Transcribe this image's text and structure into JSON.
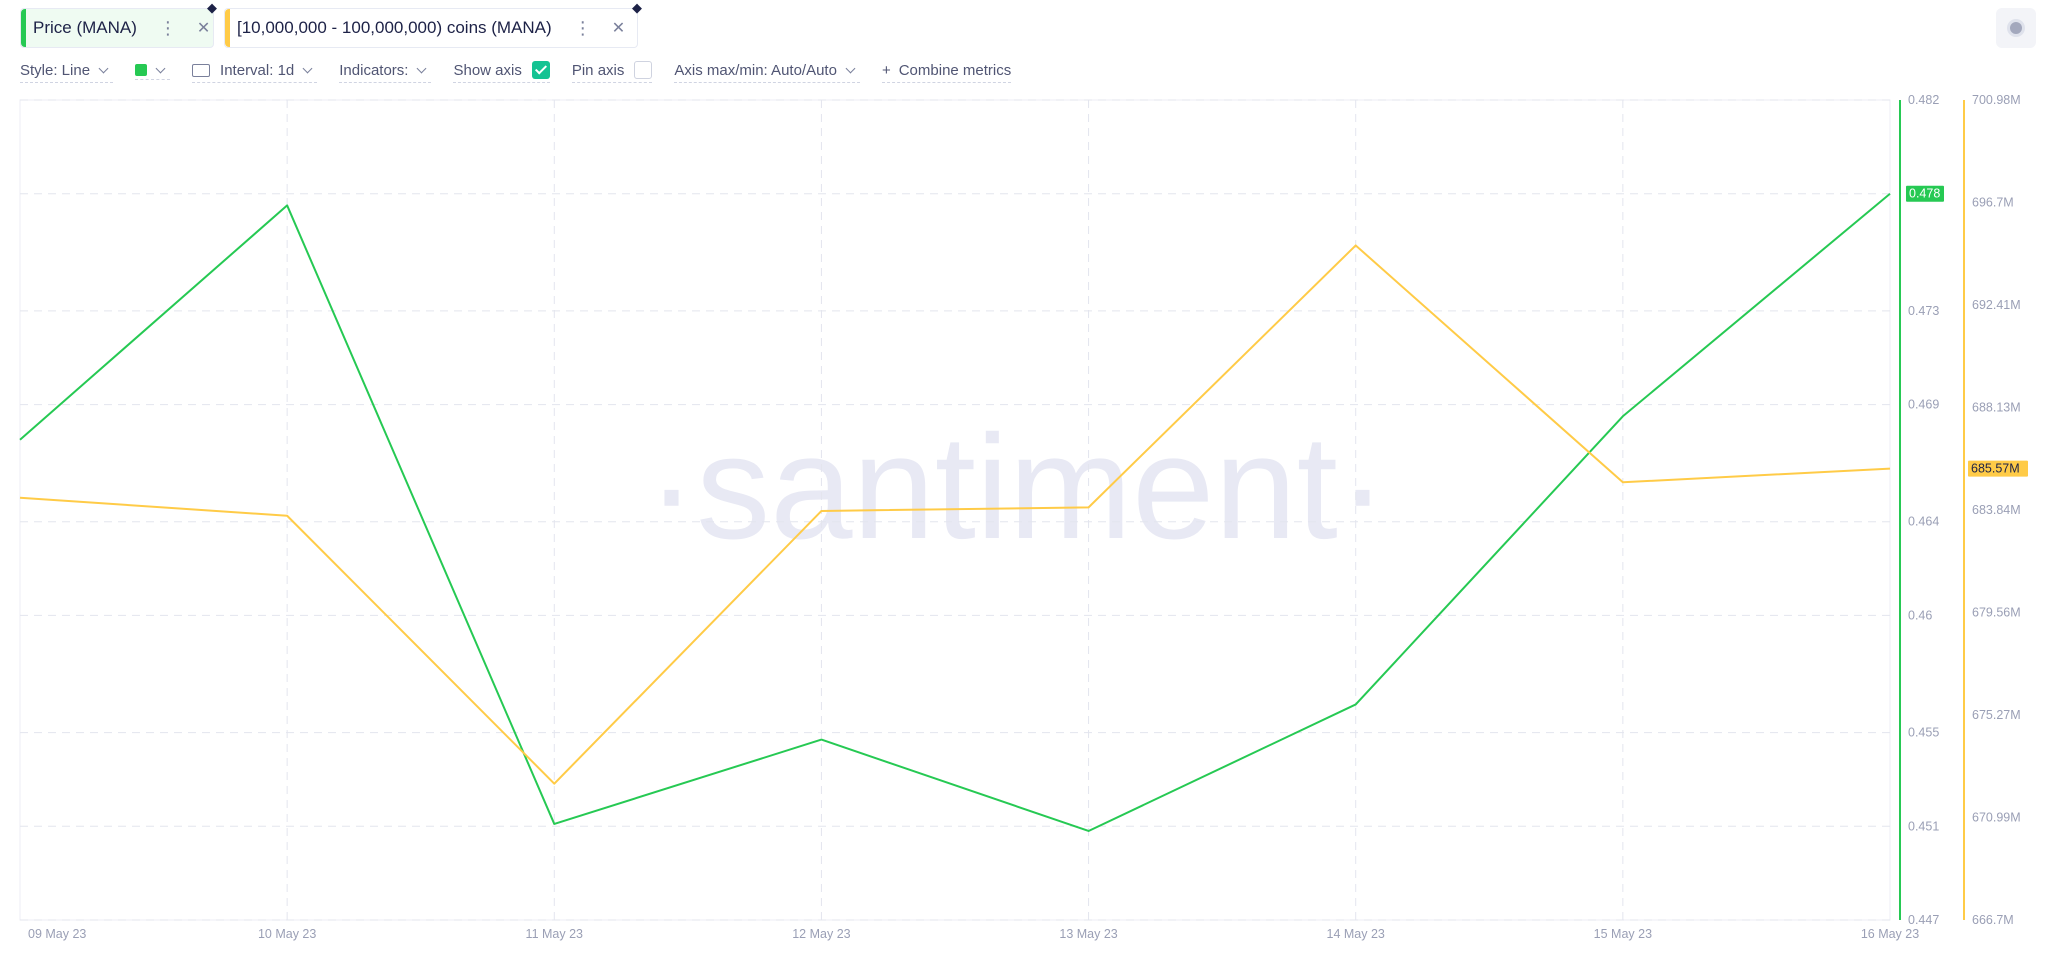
{
  "metric_tabs": [
    {
      "label": "Price (MANA)",
      "color": "#26c953",
      "bg": "#effbf2"
    },
    {
      "label": "[10,000,000 - 100,000,000) coins (MANA)",
      "color": "#ffcb47",
      "bg": "#ffffff"
    }
  ],
  "toolbar": {
    "style_label": "Style: Line",
    "interval_label": "Interval: 1d",
    "indicators_label": "Indicators:",
    "show_axis_label": "Show axis",
    "pin_axis_label": "Pin axis",
    "axis_minmax_label": "Axis max/min: Auto/Auto",
    "combine_plus": "+",
    "combine_label": "Combine metrics"
  },
  "watermark": "·santiment·",
  "chart_data": {
    "type": "line",
    "x": [
      "09 May 23",
      "10 May 23",
      "11 May 23",
      "12 May 23",
      "13 May 23",
      "14 May 23",
      "15 May 23",
      "16 May 23"
    ],
    "series": [
      {
        "name": "Price (MANA)",
        "color": "#26c953",
        "axis": "price",
        "values": [
          0.4675,
          0.4775,
          0.4511,
          0.4547,
          0.4508,
          0.4562,
          0.4685,
          0.478
        ]
      },
      {
        "name": "[10,000,000 - 100,000,000) coins (MANA)",
        "color": "#ffcb47",
        "axis": "holdings",
        "values": [
          684.35,
          683.6,
          672.4,
          683.8,
          683.95,
          694.9,
          685.0,
          685.57
        ]
      }
    ],
    "axes": {
      "price": {
        "range": [
          0.447,
          0.482
        ],
        "tick_values": [
          0.482,
          0.478,
          0.473,
          0.469,
          0.464,
          0.46,
          0.455,
          0.451,
          0.447
        ],
        "tick_labels": [
          "0.482",
          "0.478",
          "0.473",
          "0.469",
          "0.464",
          "0.46",
          "0.455",
          "0.451",
          "0.447"
        ],
        "last_value_label": "0.478"
      },
      "holdings": {
        "range": [
          666.7,
          700.98
        ],
        "tick_values": [
          700.98,
          696.7,
          692.41,
          688.13,
          683.84,
          679.56,
          675.27,
          670.99,
          666.7
        ],
        "tick_labels": [
          "700.98M",
          "696.7M",
          "692.41M",
          "688.13M",
          "683.84M",
          "679.56M",
          "675.27M",
          "670.99M",
          "666.7M"
        ],
        "last_value_label": "685.57M"
      }
    },
    "grid": true
  }
}
